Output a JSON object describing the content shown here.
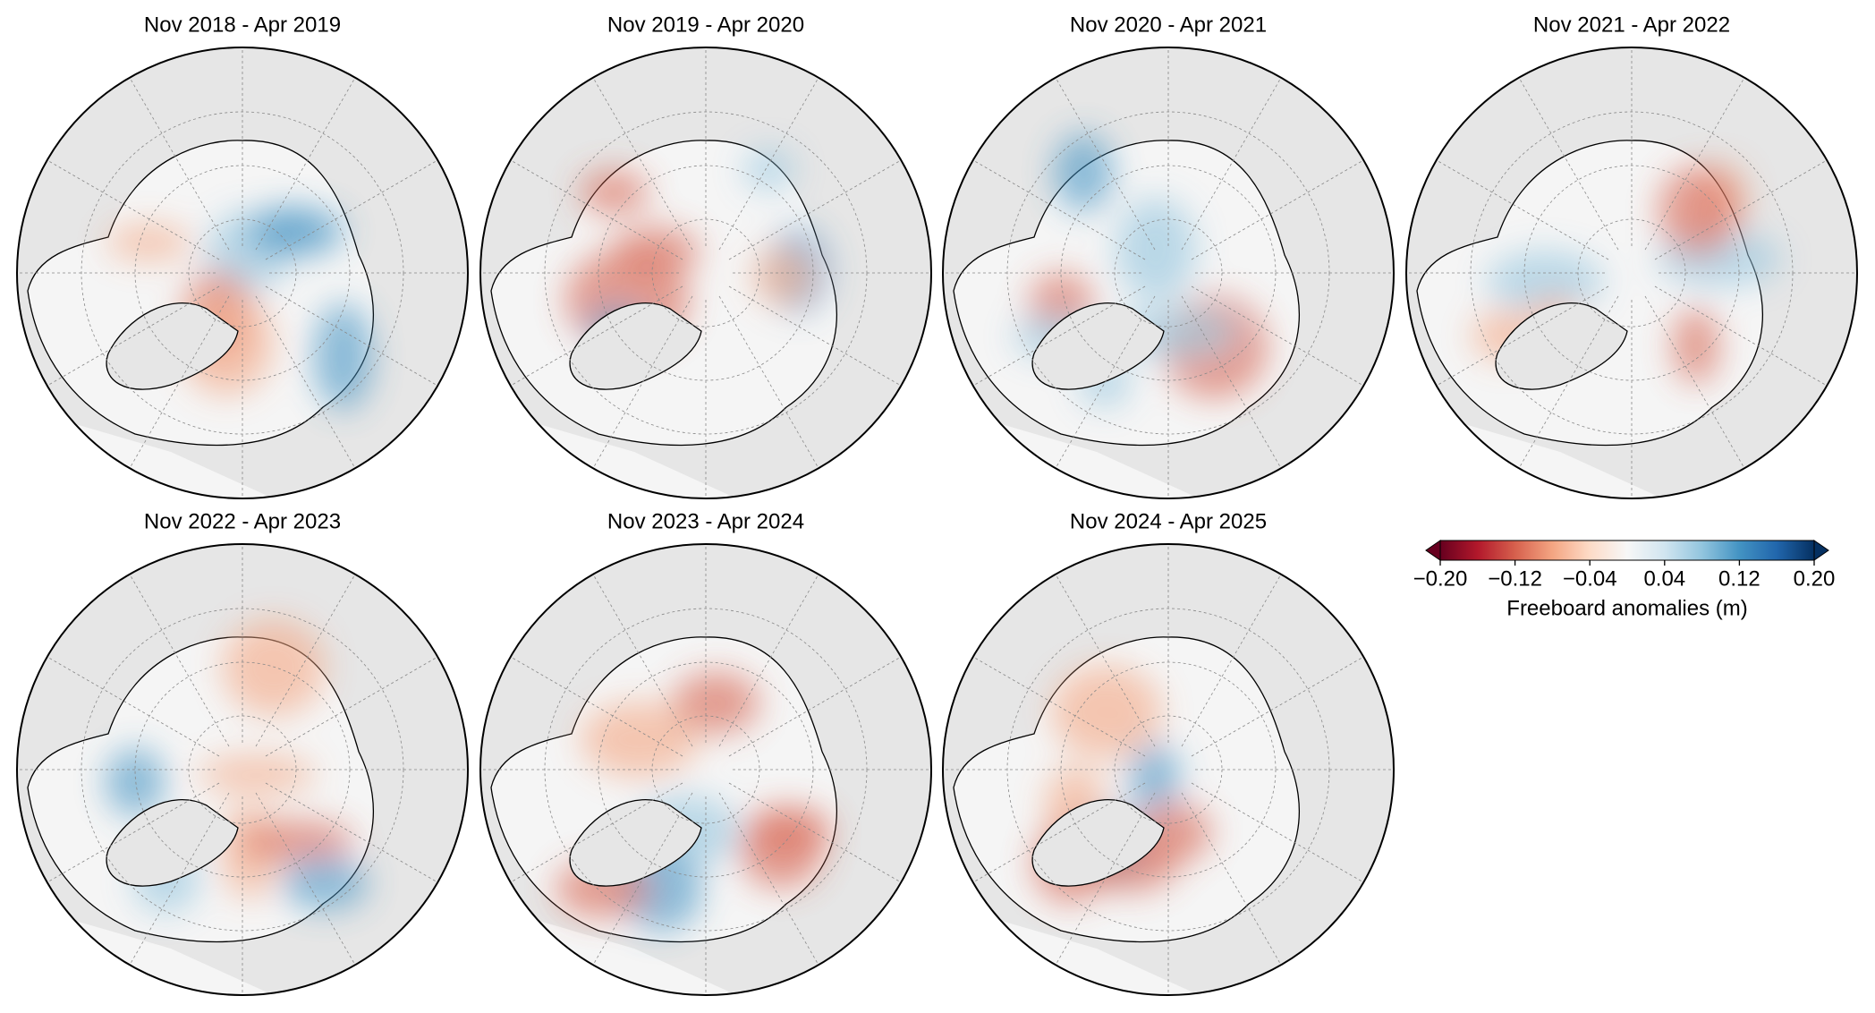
{
  "panels": [
    {
      "title": "Nov 2018 - Apr 2019"
    },
    {
      "title": "Nov 2019 - Apr 2020"
    },
    {
      "title": "Nov 2020 - Apr 2021"
    },
    {
      "title": "Nov 2021 - Apr 2022"
    },
    {
      "title": "Nov 2022 - Apr 2023"
    },
    {
      "title": "Nov 2023 - Apr 2024"
    },
    {
      "title": "Nov 2024 - Apr 2025"
    }
  ],
  "colorbar": {
    "label": "Freeboard anomalies (m)",
    "lim": [
      -0.2,
      0.2
    ],
    "ticks": [
      {
        "value": -0.2,
        "label": "−0.20"
      },
      {
        "value": -0.12,
        "label": "−0.12"
      },
      {
        "value": -0.04,
        "label": "−0.04"
      },
      0.04,
      0.12,
      {
        "value": 0.2,
        "label": "0.20"
      }
    ],
    "colors": [
      "#67001f",
      "#b2182b",
      "#d6604d",
      "#f4a582",
      "#fddbc7",
      "#f7f7f7",
      "#d1e5f0",
      "#92c5de",
      "#4393c3",
      "#2166ac",
      "#053061"
    ],
    "extend": "both"
  }
}
